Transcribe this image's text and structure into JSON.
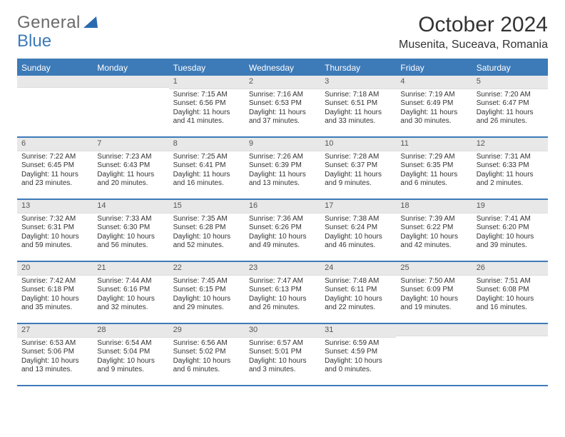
{
  "brand": {
    "name_a": "General",
    "name_b": "Blue",
    "color_a": "#6a6a6a",
    "color_b": "#3d7ab8"
  },
  "title": "October 2024",
  "location": "Musenita, Suceava, Romania",
  "colors": {
    "accent": "#3d7ab8",
    "header_bg": "#3d7ab8",
    "header_fg": "#ffffff",
    "daynum_bg": "#e8e8e8",
    "daynum_fg": "#555555",
    "body_fg": "#333333",
    "page_bg": "#ffffff"
  },
  "fonts": {
    "title_size": 30,
    "location_size": 16,
    "dayheader_size": 12,
    "cell_size": 10
  },
  "calendar": {
    "day_names": [
      "Sunday",
      "Monday",
      "Tuesday",
      "Wednesday",
      "Thursday",
      "Friday",
      "Saturday"
    ],
    "weeks": [
      [
        null,
        null,
        {
          "n": "1",
          "sr": "7:15 AM",
          "ss": "6:56 PM",
          "dl": "11 hours and 41 minutes."
        },
        {
          "n": "2",
          "sr": "7:16 AM",
          "ss": "6:53 PM",
          "dl": "11 hours and 37 minutes."
        },
        {
          "n": "3",
          "sr": "7:18 AM",
          "ss": "6:51 PM",
          "dl": "11 hours and 33 minutes."
        },
        {
          "n": "4",
          "sr": "7:19 AM",
          "ss": "6:49 PM",
          "dl": "11 hours and 30 minutes."
        },
        {
          "n": "5",
          "sr": "7:20 AM",
          "ss": "6:47 PM",
          "dl": "11 hours and 26 minutes."
        }
      ],
      [
        {
          "n": "6",
          "sr": "7:22 AM",
          "ss": "6:45 PM",
          "dl": "11 hours and 23 minutes."
        },
        {
          "n": "7",
          "sr": "7:23 AM",
          "ss": "6:43 PM",
          "dl": "11 hours and 20 minutes."
        },
        {
          "n": "8",
          "sr": "7:25 AM",
          "ss": "6:41 PM",
          "dl": "11 hours and 16 minutes."
        },
        {
          "n": "9",
          "sr": "7:26 AM",
          "ss": "6:39 PM",
          "dl": "11 hours and 13 minutes."
        },
        {
          "n": "10",
          "sr": "7:28 AM",
          "ss": "6:37 PM",
          "dl": "11 hours and 9 minutes."
        },
        {
          "n": "11",
          "sr": "7:29 AM",
          "ss": "6:35 PM",
          "dl": "11 hours and 6 minutes."
        },
        {
          "n": "12",
          "sr": "7:31 AM",
          "ss": "6:33 PM",
          "dl": "11 hours and 2 minutes."
        }
      ],
      [
        {
          "n": "13",
          "sr": "7:32 AM",
          "ss": "6:31 PM",
          "dl": "10 hours and 59 minutes."
        },
        {
          "n": "14",
          "sr": "7:33 AM",
          "ss": "6:30 PM",
          "dl": "10 hours and 56 minutes."
        },
        {
          "n": "15",
          "sr": "7:35 AM",
          "ss": "6:28 PM",
          "dl": "10 hours and 52 minutes."
        },
        {
          "n": "16",
          "sr": "7:36 AM",
          "ss": "6:26 PM",
          "dl": "10 hours and 49 minutes."
        },
        {
          "n": "17",
          "sr": "7:38 AM",
          "ss": "6:24 PM",
          "dl": "10 hours and 46 minutes."
        },
        {
          "n": "18",
          "sr": "7:39 AM",
          "ss": "6:22 PM",
          "dl": "10 hours and 42 minutes."
        },
        {
          "n": "19",
          "sr": "7:41 AM",
          "ss": "6:20 PM",
          "dl": "10 hours and 39 minutes."
        }
      ],
      [
        {
          "n": "20",
          "sr": "7:42 AM",
          "ss": "6:18 PM",
          "dl": "10 hours and 35 minutes."
        },
        {
          "n": "21",
          "sr": "7:44 AM",
          "ss": "6:16 PM",
          "dl": "10 hours and 32 minutes."
        },
        {
          "n": "22",
          "sr": "7:45 AM",
          "ss": "6:15 PM",
          "dl": "10 hours and 29 minutes."
        },
        {
          "n": "23",
          "sr": "7:47 AM",
          "ss": "6:13 PM",
          "dl": "10 hours and 26 minutes."
        },
        {
          "n": "24",
          "sr": "7:48 AM",
          "ss": "6:11 PM",
          "dl": "10 hours and 22 minutes."
        },
        {
          "n": "25",
          "sr": "7:50 AM",
          "ss": "6:09 PM",
          "dl": "10 hours and 19 minutes."
        },
        {
          "n": "26",
          "sr": "7:51 AM",
          "ss": "6:08 PM",
          "dl": "10 hours and 16 minutes."
        }
      ],
      [
        {
          "n": "27",
          "sr": "6:53 AM",
          "ss": "5:06 PM",
          "dl": "10 hours and 13 minutes."
        },
        {
          "n": "28",
          "sr": "6:54 AM",
          "ss": "5:04 PM",
          "dl": "10 hours and 9 minutes."
        },
        {
          "n": "29",
          "sr": "6:56 AM",
          "ss": "5:02 PM",
          "dl": "10 hours and 6 minutes."
        },
        {
          "n": "30",
          "sr": "6:57 AM",
          "ss": "5:01 PM",
          "dl": "10 hours and 3 minutes."
        },
        {
          "n": "31",
          "sr": "6:59 AM",
          "ss": "4:59 PM",
          "dl": "10 hours and 0 minutes."
        },
        null,
        null
      ]
    ],
    "labels": {
      "sunrise_prefix": "Sunrise: ",
      "sunset_prefix": "Sunset: ",
      "daylight_prefix": "Daylight: "
    }
  }
}
